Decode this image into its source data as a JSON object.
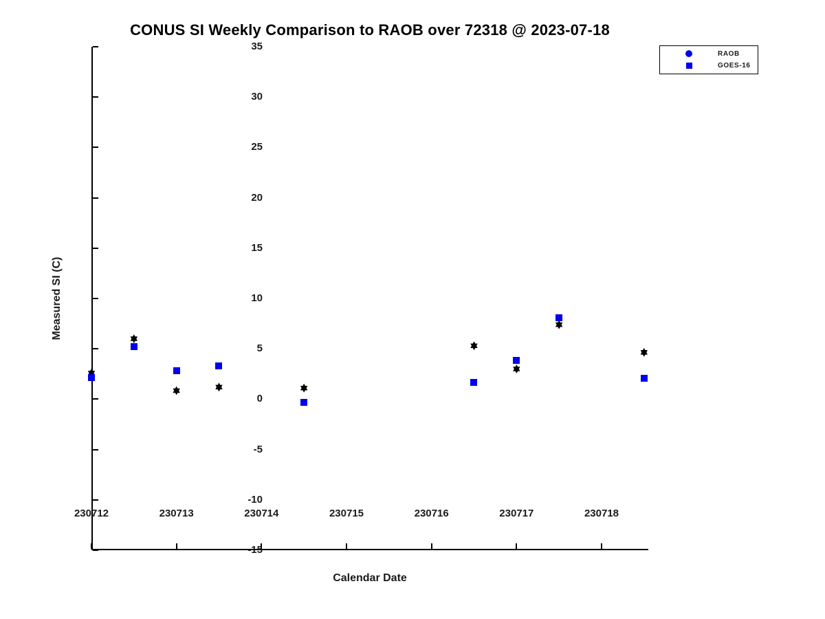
{
  "title": "CONUS SI Weekly Comparison to RAOB over 72318 @ 2023-07-18",
  "axes": {
    "xlabel": "Calendar Date",
    "ylabel": "Measured SI (C)"
  },
  "legend": {
    "items": [
      {
        "label": "RAOB",
        "marker": "circle-icon",
        "color": "#0000ee"
      },
      {
        "label": "GOES-16",
        "marker": "square-icon",
        "color": "#0000ee"
      }
    ]
  },
  "colors": {
    "raob_points": "#000000",
    "goes16_points": "#0000ee",
    "axis": "#000000",
    "background": "#ffffff"
  },
  "chart_data": {
    "type": "scatter",
    "title": "CONUS SI Weekly Comparison to RAOB over 72318 @ 2023-07-18",
    "xlabel": "Calendar Date",
    "ylabel": "Measured SI (C)",
    "xlim": [
      230712,
      230718.55
    ],
    "ylim": [
      -15,
      35
    ],
    "xticks": [
      230712,
      230713,
      230714,
      230715,
      230716,
      230717,
      230718
    ],
    "yticks": [
      -15,
      -10,
      -5,
      0,
      5,
      10,
      15,
      20,
      25,
      30,
      35
    ],
    "grid": false,
    "legend_position": "top-right",
    "series": [
      {
        "name": "RAOB",
        "marker": "hexagram",
        "color": "#000000",
        "points": [
          [
            230712.0,
            2.6
          ],
          [
            230712.5,
            6.0
          ],
          [
            230713.0,
            0.85
          ],
          [
            230713.5,
            1.2
          ],
          [
            230714.5,
            1.1
          ],
          [
            230716.5,
            5.3
          ],
          [
            230717.0,
            3.0
          ],
          [
            230717.5,
            7.4
          ],
          [
            230718.5,
            4.65
          ]
        ]
      },
      {
        "name": "GOES-16",
        "marker": "square",
        "color": "#0000ee",
        "points": [
          [
            230712.0,
            2.15
          ],
          [
            230712.5,
            5.25
          ],
          [
            230713.0,
            2.85
          ],
          [
            230713.5,
            3.3
          ],
          [
            230714.5,
            -0.3
          ],
          [
            230716.5,
            1.7
          ],
          [
            230717.0,
            3.85
          ],
          [
            230717.5,
            8.1
          ],
          [
            230718.5,
            2.1
          ]
        ]
      }
    ]
  }
}
